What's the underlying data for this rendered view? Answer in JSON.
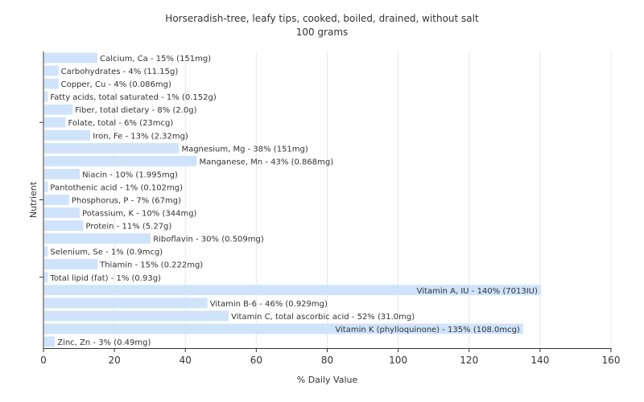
{
  "chart_data": {
    "type": "bar",
    "orientation": "horizontal",
    "title": "Horseradish-tree, leafy tips, cooked, boiled, drained, without salt",
    "subtitle": "100 grams",
    "xlabel": "% Daily Value",
    "ylabel": "Nutrient",
    "xlim": [
      0,
      160
    ],
    "xticks": [
      0,
      20,
      40,
      60,
      80,
      100,
      120,
      140,
      160
    ],
    "grid": true,
    "bar_color": "#cfe3fb",
    "grid_color": "#e8e8e8",
    "axis_color": "#333333",
    "categories": [
      "Calcium, Ca",
      "Carbohydrates",
      "Copper, Cu",
      "Fatty acids, total saturated",
      "Fiber, total dietary",
      "Folate, total",
      "Iron, Fe",
      "Magnesium, Mg",
      "Manganese, Mn",
      "Niacin",
      "Pantothenic acid",
      "Phosphorus, P",
      "Potassium, K",
      "Protein",
      "Riboflavin",
      "Selenium, Se",
      "Thiamin",
      "Total lipid (fat)",
      "Vitamin A, IU",
      "Vitamin B-6",
      "Vitamin C, total ascorbic acid",
      "Vitamin K (phylloquinone)",
      "Zinc, Zn"
    ],
    "values": [
      15,
      4,
      4,
      1,
      8,
      6,
      13,
      38,
      43,
      10,
      1,
      7,
      10,
      11,
      30,
      1,
      15,
      1,
      140,
      46,
      52,
      135,
      3
    ],
    "labels": [
      "Calcium, Ca - 15% (151mg)",
      "Carbohydrates - 4% (11.15g)",
      "Copper, Cu - 4% (0.086mg)",
      "Fatty acids, total saturated - 1% (0.152g)",
      "Fiber, total dietary - 8% (2.0g)",
      "Folate, total - 6% (23mcg)",
      "Iron, Fe - 13% (2.32mg)",
      "Magnesium, Mg - 38% (151mg)",
      "Manganese, Mn - 43% (0.868mg)",
      "Niacin - 10% (1.995mg)",
      "Pantothenic acid - 1% (0.102mg)",
      "Phosphorus, P - 7% (67mg)",
      "Potassium, K - 10% (344mg)",
      "Protein - 11% (5.27g)",
      "Riboflavin - 30% (0.509mg)",
      "Selenium, Se - 1% (0.9mcg)",
      "Thiamin - 15% (0.222mg)",
      "Total lipid (fat) - 1% (0.93g)",
      "Vitamin A, IU - 140% (7013IU)",
      "Vitamin B-6 - 46% (0.929mg)",
      "Vitamin C, total ascorbic acid - 52% (31.0mg)",
      "Vitamin K (phylloquinone) - 135% (108.0mcg)",
      "Zinc, Zn - 3% (0.49mg)"
    ]
  }
}
